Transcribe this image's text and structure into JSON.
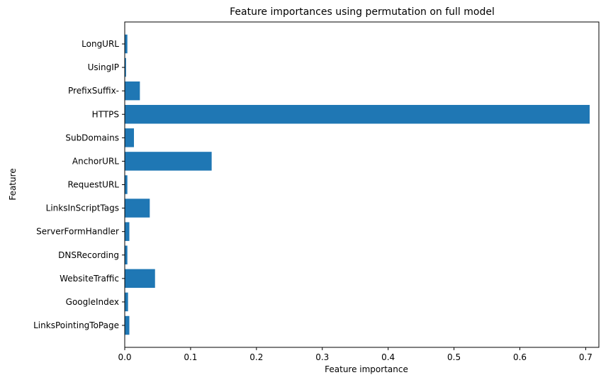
{
  "chart_data": {
    "type": "bar",
    "orientation": "horizontal",
    "title": "Feature importances using permutation on full model",
    "xlabel": "Feature importance",
    "ylabel": "Feature",
    "categories": [
      "LongURL",
      "UsingIP",
      "PrefixSuffix-",
      "HTTPS",
      "SubDomains",
      "AnchorURL",
      "RequestURL",
      "LinksInScriptTags",
      "ServerFormHandler",
      "DNSRecording",
      "WebsiteTraffic",
      "GoogleIndex",
      "LinksPointingToPage"
    ],
    "values": [
      0.004,
      0.002,
      0.023,
      0.706,
      0.014,
      0.132,
      0.004,
      0.038,
      0.007,
      0.004,
      0.046,
      0.005,
      0.007
    ],
    "xlim": [
      0.0,
      0.72
    ],
    "xticks": [
      0.0,
      0.1,
      0.2,
      0.3,
      0.4,
      0.5,
      0.6,
      0.7
    ],
    "xtick_labels": [
      "0.0",
      "0.1",
      "0.2",
      "0.3",
      "0.4",
      "0.5",
      "0.6",
      "0.7"
    ],
    "grid": false,
    "bar_color": "#1f77b4"
  }
}
